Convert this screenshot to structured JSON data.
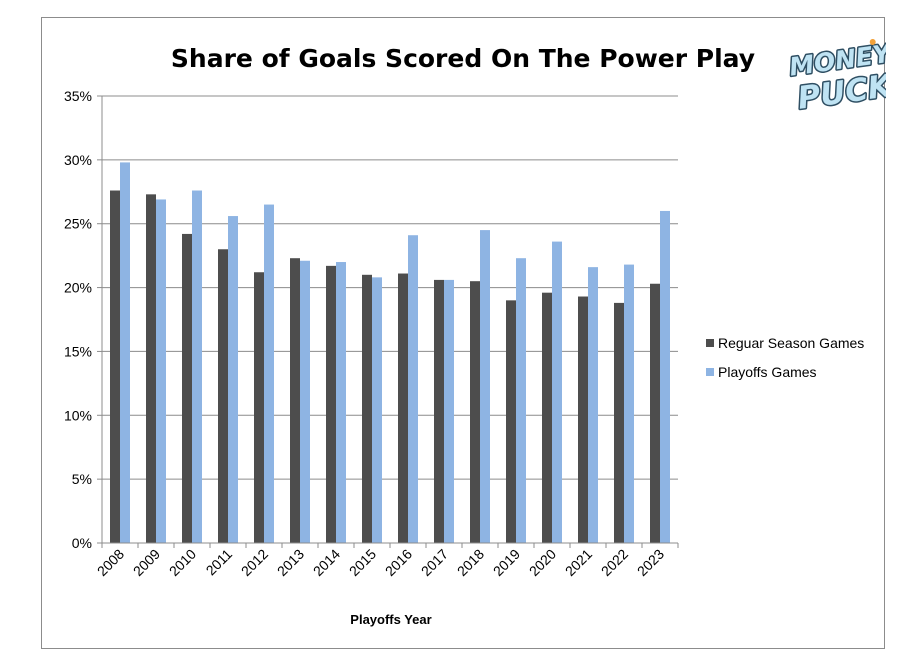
{
  "chart_data": {
    "type": "bar",
    "title": "Share of Goals Scored On The Power Play",
    "xlabel": "Playoffs Year",
    "ylabel": "",
    "ylim": [
      0,
      35
    ],
    "y_ticks": [
      "0%",
      "5%",
      "10%",
      "15%",
      "20%",
      "25%",
      "30%",
      "35%"
    ],
    "y_tick_values": [
      0,
      5,
      10,
      15,
      20,
      25,
      30,
      35
    ],
    "grid": true,
    "legend_position": "right",
    "categories": [
      "2008",
      "2009",
      "2010",
      "2011",
      "2012",
      "2013",
      "2014",
      "2015",
      "2016",
      "2017",
      "2018",
      "2019",
      "2020",
      "2021",
      "2022",
      "2023"
    ],
    "series": [
      {
        "name": "Reguar Season Games",
        "color": "#4d4d4d",
        "values": [
          27.6,
          27.3,
          24.2,
          23.0,
          21.2,
          22.3,
          21.7,
          21.0,
          21.1,
          20.6,
          20.5,
          19.0,
          19.6,
          19.3,
          18.8,
          20.3
        ]
      },
      {
        "name": "Playoffs Games",
        "color": "#8eb4e3",
        "values": [
          29.8,
          26.9,
          27.6,
          25.6,
          26.5,
          22.1,
          22.0,
          20.8,
          24.1,
          20.6,
          24.5,
          22.3,
          23.6,
          21.6,
          21.8,
          26.0
        ]
      }
    ]
  },
  "logo": {
    "line1": "MONEY",
    "line2": "PUCK",
    "color": "#bfe3f3",
    "outline": "#2f4f63"
  }
}
